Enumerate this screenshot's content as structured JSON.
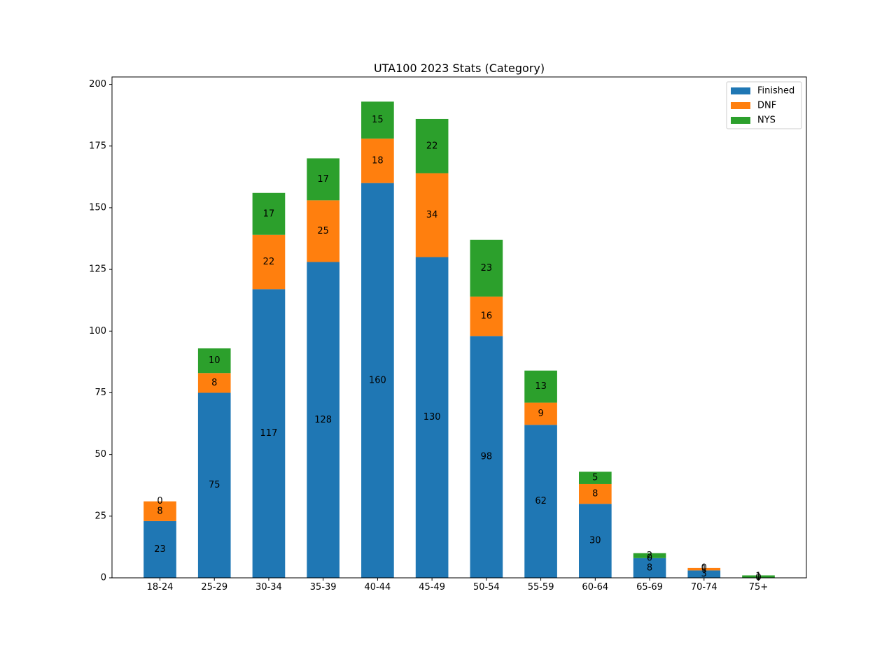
{
  "chart_data": {
    "type": "bar",
    "stacked": true,
    "title": "UTA100 2023 Stats (Category)",
    "xlabel": "",
    "ylabel": "",
    "ylim": [
      0,
      203
    ],
    "yticks": [
      0,
      25,
      50,
      75,
      100,
      125,
      150,
      175,
      200
    ],
    "categories": [
      "18-24",
      "25-29",
      "30-34",
      "35-39",
      "40-44",
      "45-49",
      "50-54",
      "55-59",
      "60-64",
      "65-69",
      "70-74",
      "75+"
    ],
    "series": [
      {
        "name": "Finished",
        "color": "#1f77b4",
        "values": [
          23,
          75,
          117,
          128,
          160,
          130,
          98,
          62,
          30,
          8,
          3,
          0
        ]
      },
      {
        "name": "DNF",
        "color": "#ff7f0e",
        "values": [
          8,
          8,
          22,
          25,
          18,
          34,
          16,
          9,
          8,
          0,
          1,
          0
        ]
      },
      {
        "name": "NYS",
        "color": "#2ca02c",
        "values": [
          0,
          10,
          17,
          17,
          15,
          22,
          23,
          13,
          5,
          2,
          0,
          1
        ]
      }
    ],
    "legend_position": "top-right",
    "grid": false
  }
}
